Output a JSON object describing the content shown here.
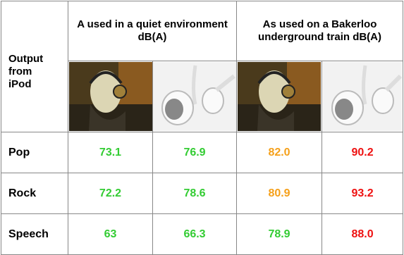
{
  "table": {
    "corner": "Output from iPod",
    "groups": [
      "A used in a quiet environment dB(A)",
      "As used on a Bakerloo underground train dB(A)"
    ],
    "rows": [
      {
        "label": "Pop",
        "cells": [
          {
            "text": "73.1",
            "color": "#33cc33"
          },
          {
            "text": "76.9",
            "color": "#33cc33"
          },
          {
            "text": "82.0",
            "color": "#f5a01a"
          },
          {
            "text": "90.2",
            "color": "#ee1111"
          }
        ]
      },
      {
        "label": "Rock",
        "cells": [
          {
            "text": "72.2",
            "color": "#33cc33"
          },
          {
            "text": "78.6",
            "color": "#33cc33"
          },
          {
            "text": "80.9",
            "color": "#f5a01a"
          },
          {
            "text": "93.2",
            "color": "#ee1111"
          }
        ]
      },
      {
        "label": "Speech",
        "cells": [
          {
            "text": "63",
            "color": "#33cc33"
          },
          {
            "text": "66.3",
            "color": "#33cc33"
          },
          {
            "text": "78.9",
            "color": "#33cc33"
          },
          {
            "text": "88.0",
            "color": "#ee1111"
          }
        ]
      }
    ]
  }
}
